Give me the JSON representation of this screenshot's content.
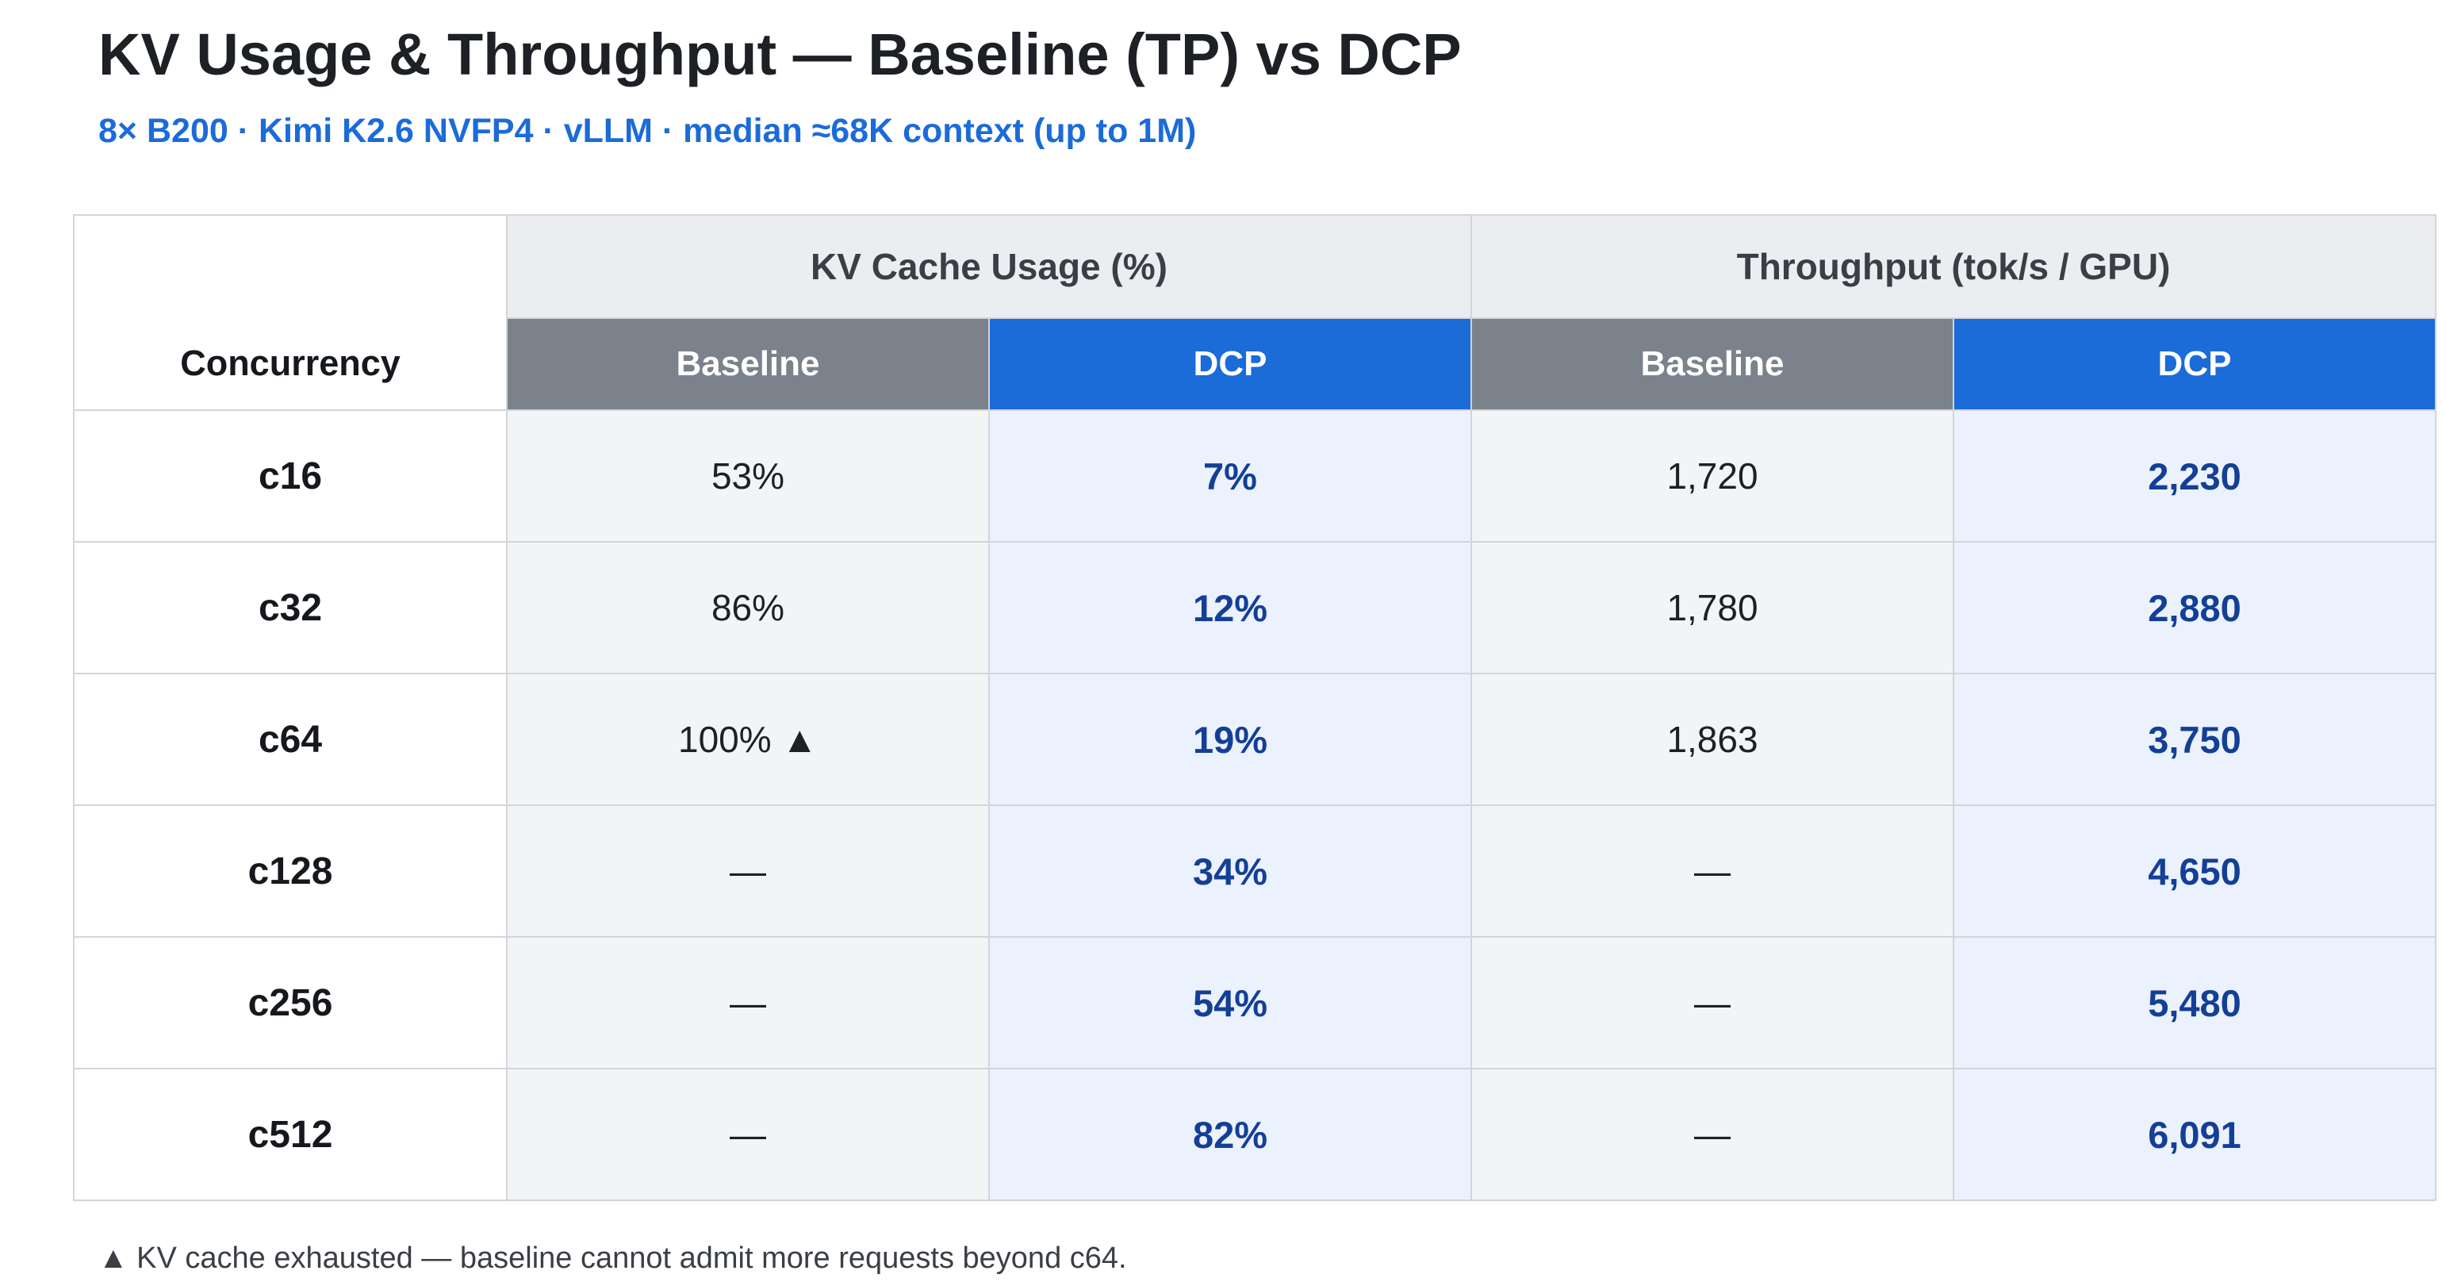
{
  "header": {
    "title": "KV Usage & Throughput — Baseline (TP) vs DCP",
    "subtitle": "8× B200 · Kimi K2.6 NVFP4 · vLLM · median ≈68K context (up to 1M)"
  },
  "table": {
    "concurrency_label": "Concurrency",
    "groups": {
      "kv": "KV Cache Usage (%)",
      "throughput": "Throughput (tok/s / GPU)"
    },
    "sub": {
      "baseline": "Baseline",
      "dcp": "DCP"
    },
    "rows": [
      {
        "concurrency": "c16",
        "kv_baseline": "53%",
        "kv_dcp": "7%",
        "tp_baseline": "1,720",
        "tp_dcp": "2,230"
      },
      {
        "concurrency": "c32",
        "kv_baseline": "86%",
        "kv_dcp": "12%",
        "tp_baseline": "1,780",
        "tp_dcp": "2,880"
      },
      {
        "concurrency": "c64",
        "kv_baseline": "100% ▲",
        "kv_dcp": "19%",
        "tp_baseline": "1,863",
        "tp_dcp": "3,750"
      },
      {
        "concurrency": "c128",
        "kv_baseline": "—",
        "kv_dcp": "34%",
        "tp_baseline": "—",
        "tp_dcp": "4,650"
      },
      {
        "concurrency": "c256",
        "kv_baseline": "—",
        "kv_dcp": "54%",
        "tp_baseline": "—",
        "tp_dcp": "5,480"
      },
      {
        "concurrency": "c512",
        "kv_baseline": "—",
        "kv_dcp": "82%",
        "tp_baseline": "—",
        "tp_dcp": "6,091"
      }
    ]
  },
  "footnote": "▲ KV cache exhausted — baseline cannot admit more requests beyond c64.",
  "colors": {
    "accent": "#1b6bd9",
    "baseline_header": "#7b828b",
    "dcp_value_text": "#143f96",
    "dcp_cell_bg": "#ebf2fd",
    "baseline_cell_bg": "#f3f4f6",
    "group_header_bg": "#ecedf0"
  }
}
